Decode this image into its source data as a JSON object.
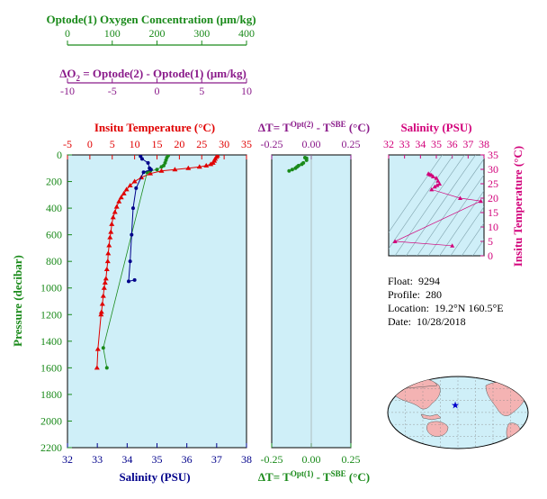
{
  "colors": {
    "green": "#1a8a1a",
    "purple": "#8a1a8a",
    "red": "#e00000",
    "blue": "#00008b",
    "magenta": "#d2007a",
    "panel_bg": "#cfeff8",
    "land": "#f4b3b3"
  },
  "info": {
    "float_label": "Float:",
    "float_value": "9294",
    "profile_label": "Profile:",
    "profile_value": "280",
    "location_label": "Location:",
    "location_value": "19.2°N  160.5°E",
    "date_label": "Date:",
    "date_value": "10/28/2018"
  },
  "chart_data": [
    {
      "type": "scatter",
      "panel": "main profile",
      "y_axis": {
        "label": "Pressure (decibar)",
        "range": [
          2200,
          0
        ],
        "ticks": [
          "0",
          "200",
          "400",
          "600",
          "800",
          "1000",
          "1200",
          "1400",
          "1600",
          "1800",
          "2000",
          "2200"
        ]
      },
      "oxygen_axis": {
        "label": "Optode(1) Oxygen Concentration (μm/kg)",
        "range": [
          0,
          400
        ],
        "ticks": [
          "0",
          "100",
          "200",
          "300",
          "400"
        ]
      },
      "delta_o2_axis": {
        "label": "ΔO2 = Optode(2) - Optode(1)   (μm/kg)",
        "range": [
          -10,
          10
        ],
        "ticks": [
          "-10",
          "-5",
          "0",
          "5",
          "10"
        ]
      },
      "temperature_axis": {
        "label": "Insitu Temperature (°C)",
        "range": [
          -5,
          35
        ],
        "ticks": [
          "-5",
          "0",
          "5",
          "10",
          "15",
          "20",
          "25",
          "30",
          "35"
        ]
      },
      "salinity_axis": {
        "label": "Salinity (PSU)",
        "range": [
          32,
          38
        ],
        "ticks": [
          "32",
          "33",
          "34",
          "35",
          "36",
          "37",
          "38"
        ]
      },
      "series": [
        {
          "color": "red",
          "variable": "temperature",
          "points": [
            [
              28.5,
              5
            ],
            [
              28.3,
              15
            ],
            [
              28,
              30
            ],
            [
              27.8,
              45
            ],
            [
              27.5,
              60
            ],
            [
              27,
              70
            ],
            [
              26,
              80
            ],
            [
              24.5,
              90
            ],
            [
              22,
              100
            ],
            [
              19,
              110
            ],
            [
              16,
              120
            ],
            [
              13.5,
              140
            ],
            [
              11.5,
              170
            ],
            [
              10,
              200
            ],
            [
              9,
              230
            ],
            [
              8.2,
              260
            ],
            [
              7.6,
              290
            ],
            [
              7,
              320
            ],
            [
              6.5,
              350
            ],
            [
              6,
              390
            ],
            [
              5.6,
              430
            ],
            [
              5.2,
              470
            ],
            [
              4.9,
              520
            ],
            [
              4.7,
              580
            ],
            [
              4.5,
              620
            ],
            [
              4.3,
              680
            ],
            [
              4.1,
              740
            ],
            [
              4,
              800
            ],
            [
              3.8,
              860
            ],
            [
              3.6,
              930
            ],
            [
              3.4,
              960
            ],
            [
              3.2,
              1000
            ],
            [
              3,
              1060
            ],
            [
              2.8,
              1120
            ],
            [
              2.6,
              1180
            ],
            [
              2.5,
              1200
            ],
            [
              1.8,
              1460
            ],
            [
              1.6,
              1600
            ]
          ]
        },
        {
          "color": "green",
          "variable": "oxygen",
          "points": [
            [
              225,
              5
            ],
            [
              222,
              20
            ],
            [
              220,
              40
            ],
            [
              218,
              60
            ],
            [
              215,
              80
            ],
            [
              210,
              90
            ],
            [
              200,
              110
            ],
            [
              185,
              120
            ],
            [
              178,
              130
            ],
            [
              80,
              1450
            ],
            [
              88,
              1600
            ]
          ]
        },
        {
          "color": "blue",
          "variable": "salinity",
          "points": [
            [
              34.45,
              10
            ],
            [
              34.5,
              30
            ],
            [
              34.7,
              60
            ],
            [
              34.75,
              100
            ],
            [
              34.8,
              110
            ],
            [
              34.55,
              130
            ],
            [
              34.3,
              250
            ],
            [
              34.2,
              400
            ],
            [
              34.15,
              600
            ],
            [
              34.1,
              800
            ],
            [
              34.05,
              950
            ],
            [
              34.25,
              940
            ]
          ]
        }
      ]
    },
    {
      "type": "scatter",
      "panel": "temperature difference",
      "top_axis": {
        "label": "ΔT= T^Opt(2) - T^SBE (°C)",
        "range": [
          -0.25,
          0.25
        ],
        "ticks": [
          "-0.25",
          "0.00",
          "0.25"
        ]
      },
      "bottom_axis": {
        "label": "ΔT= T^Opt(1) - T^SBE (°C)",
        "range": [
          -0.25,
          0.25
        ],
        "ticks": [
          "-0.25",
          "0.00",
          "0.25"
        ]
      },
      "series": [
        {
          "color": "green",
          "points": [
            [
              -0.04,
              20
            ],
            [
              -0.03,
              40
            ],
            [
              -0.05,
              60
            ],
            [
              -0.06,
              70
            ],
            [
              -0.08,
              80
            ],
            [
              -0.09,
              90
            ],
            [
              -0.1,
              100
            ],
            [
              -0.12,
              110
            ],
            [
              -0.14,
              120
            ],
            [
              -0.03,
              25
            ]
          ]
        }
      ]
    },
    {
      "type": "scatter",
      "panel": "T-S diagram",
      "x_axis": {
        "label": "Salinity (PSU)",
        "range": [
          32,
          38
        ],
        "ticks": [
          "32",
          "33",
          "34",
          "35",
          "36",
          "37",
          "38"
        ]
      },
      "y_axis": {
        "label": "Insitu Temperature (°C)",
        "range": [
          0,
          35
        ],
        "ticks": [
          "0",
          "5",
          "10",
          "15",
          "20",
          "25",
          "30",
          "35"
        ]
      },
      "series": [
        {
          "color": "magenta",
          "points": [
            [
              34.5,
              28.5
            ],
            [
              34.6,
              28.2
            ],
            [
              34.7,
              28
            ],
            [
              34.8,
              27.5
            ],
            [
              35,
              27
            ],
            [
              35.1,
              26
            ],
            [
              35.2,
              25
            ],
            [
              35.05,
              24.5
            ],
            [
              34.9,
              24
            ],
            [
              34.7,
              23
            ],
            [
              36.5,
              20
            ],
            [
              37.8,
              19
            ],
            [
              32.4,
              5
            ],
            [
              36,
              3.5
            ]
          ]
        }
      ]
    },
    {
      "type": "map",
      "panel": "float location",
      "marker": {
        "lat": 19.2,
        "lon": 160.5
      }
    }
  ]
}
